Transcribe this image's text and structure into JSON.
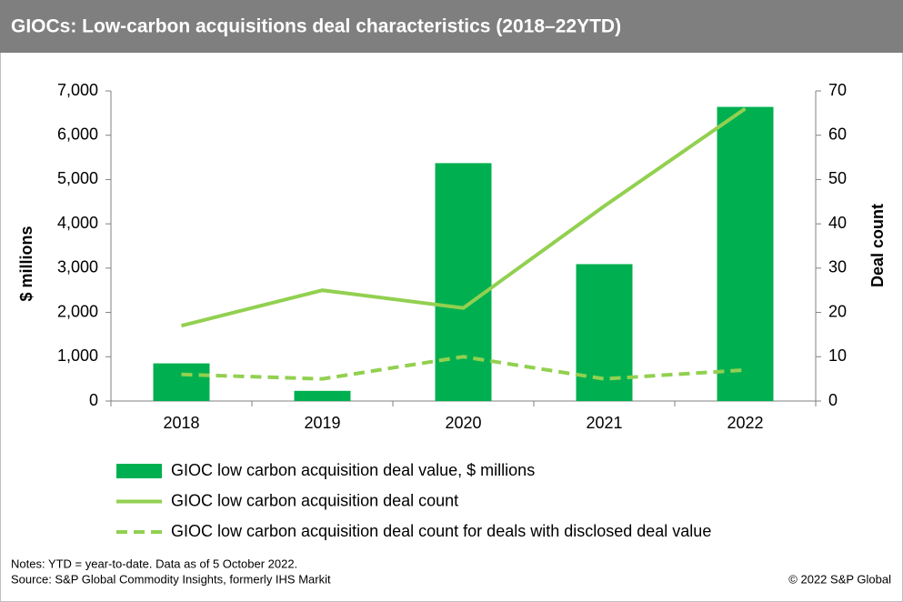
{
  "chart_data": {
    "type": "combo",
    "title": "GIOCs: Low-carbon acquisitions deal characteristics (2018–22YTD)",
    "y_label": "$ millions",
    "y2_label": "Deal count",
    "categories": [
      "2018",
      "2019",
      "2020",
      "2021",
      "2022"
    ],
    "series": [
      {
        "name": "GIOC low carbon acquisition deal value, $ millions",
        "type": "bar",
        "color": "#00b050",
        "values": [
          850,
          230,
          5370,
          3090,
          6640
        ]
      },
      {
        "name": "GIOC low carbon acquisition deal count",
        "type": "line",
        "line_style": "solid",
        "axis": "y2",
        "color": "#92d050",
        "values": [
          17,
          25,
          21,
          44,
          66
        ]
      },
      {
        "name": "GIOC low carbon acquisition deal count for deals with disclosed deal value",
        "type": "line",
        "line_style": "dashed",
        "axis": "y2",
        "color": "#92d050",
        "values": [
          6,
          5,
          10,
          5,
          7
        ]
      }
    ],
    "ylim": [
      0,
      7000
    ],
    "yticks": [
      0,
      {
        "value": 1000,
        "label": "1,000"
      },
      {
        "value": 2000,
        "label": "2,000"
      },
      {
        "value": 3000,
        "label": "3,000"
      },
      {
        "value": 4000,
        "label": "4,000"
      },
      {
        "value": 5000,
        "label": "5,000"
      },
      {
        "value": 6000,
        "label": "6,000"
      },
      {
        "value": 7000,
        "label": "7,000"
      }
    ],
    "y2lim": [
      0,
      70
    ],
    "y2ticks": [
      0,
      10,
      20,
      30,
      40,
      50,
      60,
      70
    ],
    "grid": false,
    "notes": [
      "Notes: YTD = year-to-date. Data as of 5 October 2022.",
      "Source: S&P Global Commodity Insights, formerly IHS Markit"
    ],
    "copyright": "© 2022 S&P Global"
  }
}
